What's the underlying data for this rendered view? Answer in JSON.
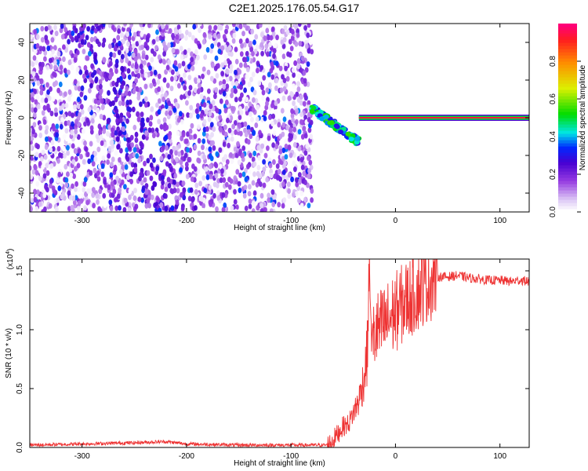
{
  "title": "C2E1.2025.176.05.54.G17",
  "chart_data": [
    {
      "type": "heatmap",
      "xlabel": "Height of straight line (km)",
      "ylabel": "Frequency (Hz)",
      "xlim": [
        -350,
        128
      ],
      "ylim": [
        -50,
        50
      ],
      "xticks": [
        -300,
        -200,
        -100,
        0,
        100
      ],
      "yticks": [
        -40,
        -20,
        0,
        20,
        40
      ],
      "colorbar": {
        "label": "Normalized spectral amplitude",
        "range": [
          0.0,
          1.0
        ],
        "ticks": [
          0.0,
          0.2,
          0.4,
          0.6,
          0.8
        ]
      },
      "regions": [
        {
          "x_range": [
            -350,
            -80
          ],
          "description": "broadband noise, amplitude 0.0-0.3"
        },
        {
          "x_range": [
            -80,
            -35
          ],
          "description": "descending carrier, frequency 5 to -15 Hz"
        },
        {
          "x_range": [
            -35,
            128
          ],
          "description": "steady carrier near 0 Hz, amplitude ~1.0"
        }
      ]
    },
    {
      "type": "line",
      "xlabel": "Height of straight line (km)",
      "ylabel": "SNR (10 * v/v)",
      "y_scale_label": "(x10",
      "y_scale_exp": "4",
      "y_scale_close": ")",
      "xlim": [
        -350,
        128
      ],
      "ylim": [
        0.0,
        1.6
      ],
      "xticks": [
        -300,
        -200,
        -100,
        0,
        100
      ],
      "yticks": [
        0.0,
        0.5,
        1.0,
        1.5
      ],
      "yticklabels": [
        "0.0",
        "0.5",
        "1.0",
        "1.5"
      ],
      "color": "#ee3333",
      "series": [
        {
          "x": [
            -350,
            -300,
            -250,
            -220,
            -200,
            -150,
            -100,
            -65,
            -60,
            -55,
            -50,
            -45,
            -40,
            -35,
            -30,
            -27,
            -25,
            -23,
            -20,
            -18,
            -15,
            -10,
            -5,
            0,
            5,
            10,
            20,
            30,
            40,
            50,
            60,
            70,
            80,
            90,
            100,
            110,
            120,
            128
          ],
          "y": [
            0.02,
            0.03,
            0.04,
            0.05,
            0.03,
            0.02,
            0.02,
            0.02,
            0.06,
            0.12,
            0.18,
            0.2,
            0.3,
            0.4,
            0.6,
            0.8,
            1.6,
            0.9,
            0.95,
            1.0,
            1.0,
            1.05,
            1.1,
            1.15,
            1.2,
            1.25,
            1.32,
            1.4,
            1.45,
            1.45,
            1.46,
            1.44,
            1.43,
            1.42,
            1.42,
            1.41,
            1.42,
            1.41
          ]
        }
      ]
    }
  ]
}
